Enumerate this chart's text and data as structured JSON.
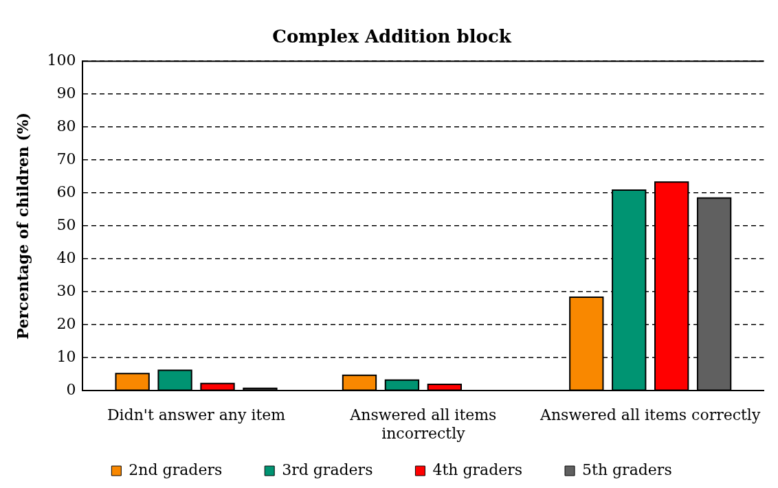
{
  "chart_data": {
    "type": "bar",
    "title": "Complex Addition block",
    "ylabel": "Percentage of children (%)",
    "categories": [
      "Didn't answer any item",
      "Answered all items incorrectly",
      "Answered all items correctly"
    ],
    "series": [
      {
        "name": "2nd graders",
        "color": "#f98800",
        "values": [
          5.2,
          4.7,
          28.4
        ]
      },
      {
        "name": "3rd graders",
        "color": "#009472",
        "values": [
          6.2,
          3.2,
          60.9
        ]
      },
      {
        "name": "4th graders",
        "color": "#ff0000",
        "values": [
          2.2,
          1.9,
          63.3
        ]
      },
      {
        "name": "5th graders",
        "color": "#606060",
        "values": [
          0.7,
          0,
          58.5
        ]
      }
    ],
    "ylim": [
      0,
      100
    ],
    "yticks": [
      0,
      10,
      20,
      30,
      40,
      50,
      60,
      70,
      80,
      90,
      100
    ],
    "grid": "y",
    "legend": "bottom"
  }
}
